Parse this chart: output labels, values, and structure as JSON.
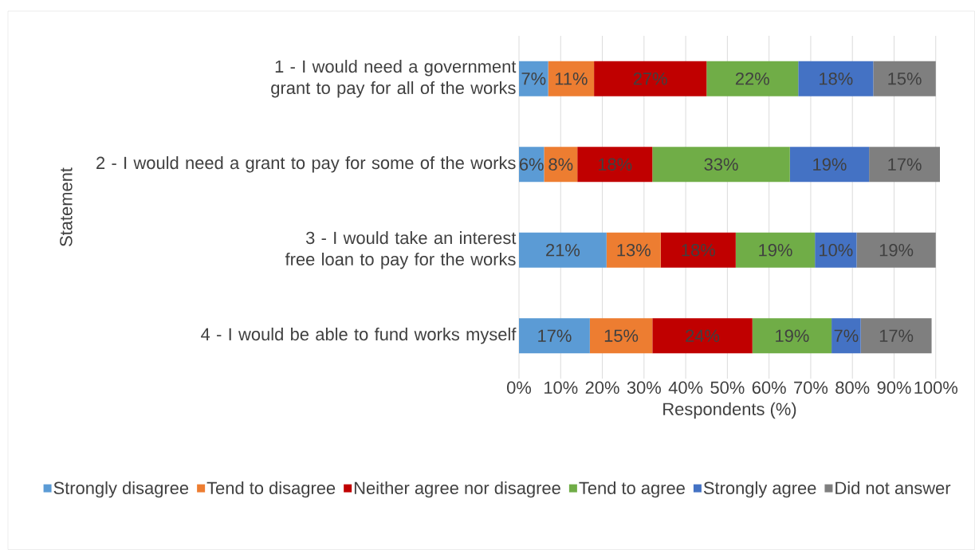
{
  "chart_data": {
    "type": "bar",
    "orientation": "horizontal",
    "stacked": true,
    "categories": [
      "1 - I would need a government grant to pay for all of the works",
      "2 - I would need a grant to pay for some of the works",
      "3 - I would take an interest free loan to pay for the works",
      "4 - I would be able to fund works myself"
    ],
    "series": [
      {
        "name": "Strongly disagree",
        "color": "#5b9bd5",
        "values": [
          7,
          6,
          21,
          17
        ],
        "value_labels": [
          "7%",
          "6%",
          "21%",
          "17%"
        ]
      },
      {
        "name": "Tend to disagree",
        "color": "#ed7d31",
        "values": [
          11,
          8,
          13,
          15
        ],
        "value_labels": [
          "11%",
          "8%",
          "13%",
          "15%"
        ]
      },
      {
        "name": "Neither agree nor disagree",
        "color": "#c00000",
        "values": [
          27,
          18,
          18,
          24
        ],
        "value_labels": [
          "27%",
          "18%",
          "18%",
          "24%"
        ]
      },
      {
        "name": "Tend to agree",
        "color": "#70ad47",
        "values": [
          22,
          33,
          19,
          19
        ],
        "value_labels": [
          "22%",
          "33%",
          "19%",
          "19%"
        ]
      },
      {
        "name": "Strongly agree",
        "color": "#4472c4",
        "values": [
          18,
          19,
          10,
          7
        ],
        "value_labels": [
          "18%",
          "19%",
          "10%",
          "7%"
        ]
      },
      {
        "name": "Did not answer",
        "color": "#7f7f7f",
        "values": [
          15,
          17,
          19,
          17
        ],
        "value_labels": [
          "15%",
          "17%",
          "19%",
          "17%"
        ]
      }
    ],
    "xlim": [
      0,
      101
    ],
    "xticks": [
      {
        "value": 0,
        "label": "0%"
      },
      {
        "value": 10,
        "label": "10%"
      },
      {
        "value": 20,
        "label": "20%"
      },
      {
        "value": 30,
        "label": "30%"
      },
      {
        "value": 40,
        "label": "40%"
      },
      {
        "value": 50,
        "label": "50%"
      },
      {
        "value": 60,
        "label": "60%"
      },
      {
        "value": 70,
        "label": "70%"
      },
      {
        "value": 80,
        "label": "80%"
      },
      {
        "value": 90,
        "label": "90%"
      },
      {
        "value": 100,
        "label": "100%"
      }
    ],
    "xlabel": "Respondents (%)",
    "ylabel": "Statement",
    "grid": "x",
    "legend": "bottom"
  }
}
